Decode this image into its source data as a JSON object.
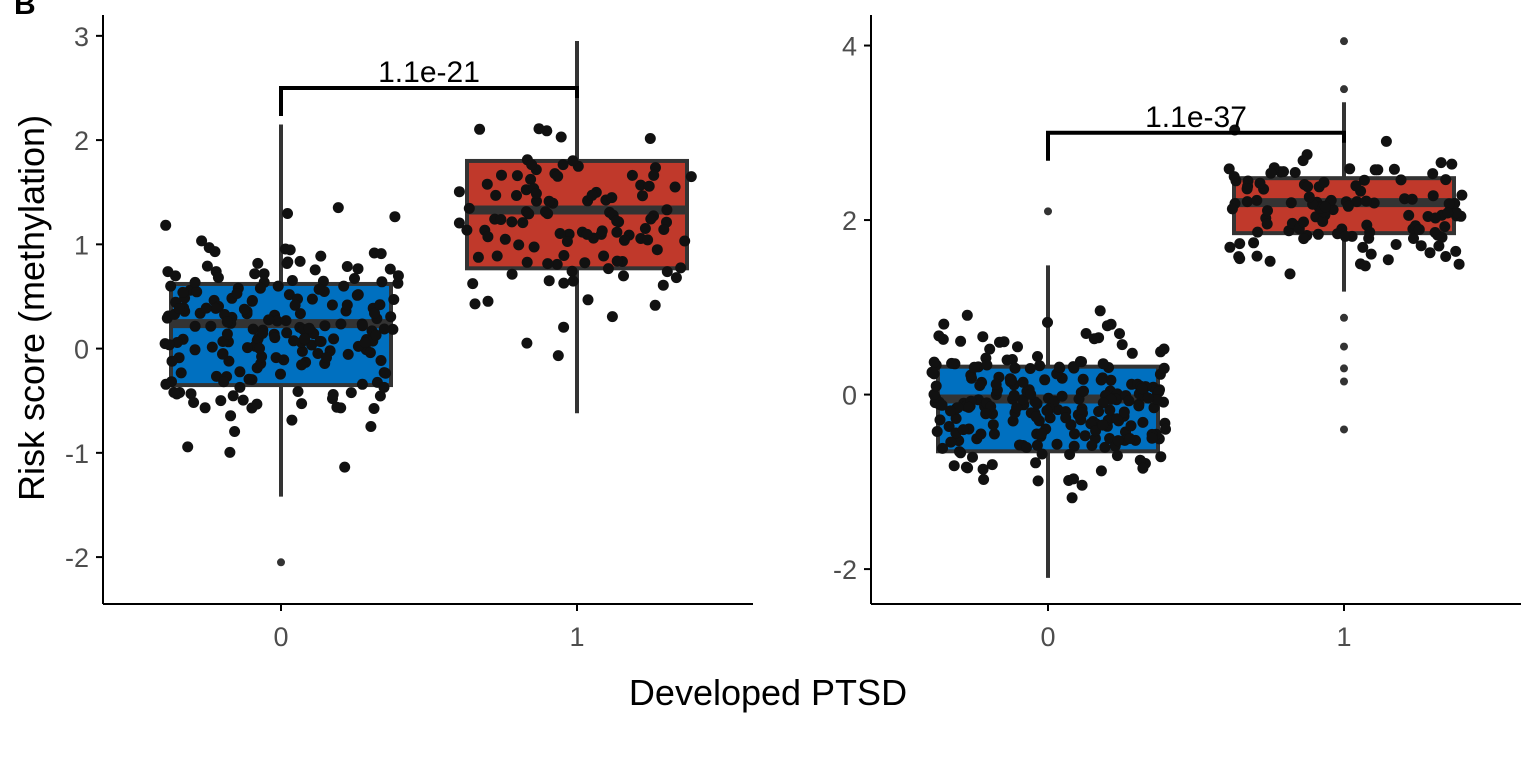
{
  "figure": {
    "panel_tag": "B",
    "ylabel": "Risk score (methylation)",
    "xlabel": "Developed PTSD"
  },
  "colors": {
    "group0": "#0070C0",
    "group1": "#C0392B",
    "box_outline": "#333333",
    "points": "#111111",
    "axis": "#000000"
  },
  "chart_data": [
    {
      "type": "box",
      "panel": "left",
      "categories": [
        "0",
        "1"
      ],
      "ylim": [
        -2.45,
        3.2
      ],
      "yticks": [
        -2,
        -1,
        0,
        1,
        2,
        3
      ],
      "ytick_labels": [
        "-2",
        "-1",
        "0",
        "1",
        "2",
        "3"
      ],
      "boxes": [
        {
          "group": "0",
          "q1": -0.35,
          "median": 0.24,
          "q3": 0.62,
          "whisker_low": -1.42,
          "whisker_high": 2.15,
          "outliers": [
            -2.05
          ],
          "fill": "#0070C0",
          "n_points": 200,
          "spread": 0.78,
          "center": 0.15
        },
        {
          "group": "1",
          "q1": 0.77,
          "median": 1.33,
          "q3": 1.8,
          "whisker_low": -0.62,
          "whisker_high": 2.95,
          "outliers": [],
          "fill": "#C0392B",
          "n_points": 110,
          "spread": 0.7,
          "center": 1.2
        }
      ],
      "comparison": {
        "label": "1.1e-21",
        "y": 2.5
      },
      "grid": false
    },
    {
      "type": "box",
      "panel": "right",
      "categories": [
        "0",
        "1"
      ],
      "ylim": [
        -2.4,
        4.35
      ],
      "yticks": [
        -2,
        0,
        2,
        4
      ],
      "ytick_labels": [
        "-2",
        "0",
        "2",
        "4"
      ],
      "boxes": [
        {
          "group": "0",
          "q1": -0.65,
          "median": -0.05,
          "q3": 0.32,
          "whisker_low": -2.1,
          "whisker_high": 1.48,
          "outliers": [
            2.1
          ],
          "fill": "#0070C0",
          "n_points": 230,
          "spread": 0.72,
          "center": -0.15
        },
        {
          "group": "1",
          "q1": 1.85,
          "median": 2.2,
          "q3": 2.48,
          "whisker_low": 1.18,
          "whisker_high": 3.35,
          "outliers": [
            4.05,
            3.5,
            0.88,
            0.55,
            0.3,
            0.15,
            -0.4
          ],
          "fill": "#C0392B",
          "n_points": 120,
          "spread": 0.55,
          "center": 2.1
        }
      ],
      "comparison": {
        "label": "1.1e-37",
        "y": 3.0
      },
      "grid": false
    }
  ]
}
